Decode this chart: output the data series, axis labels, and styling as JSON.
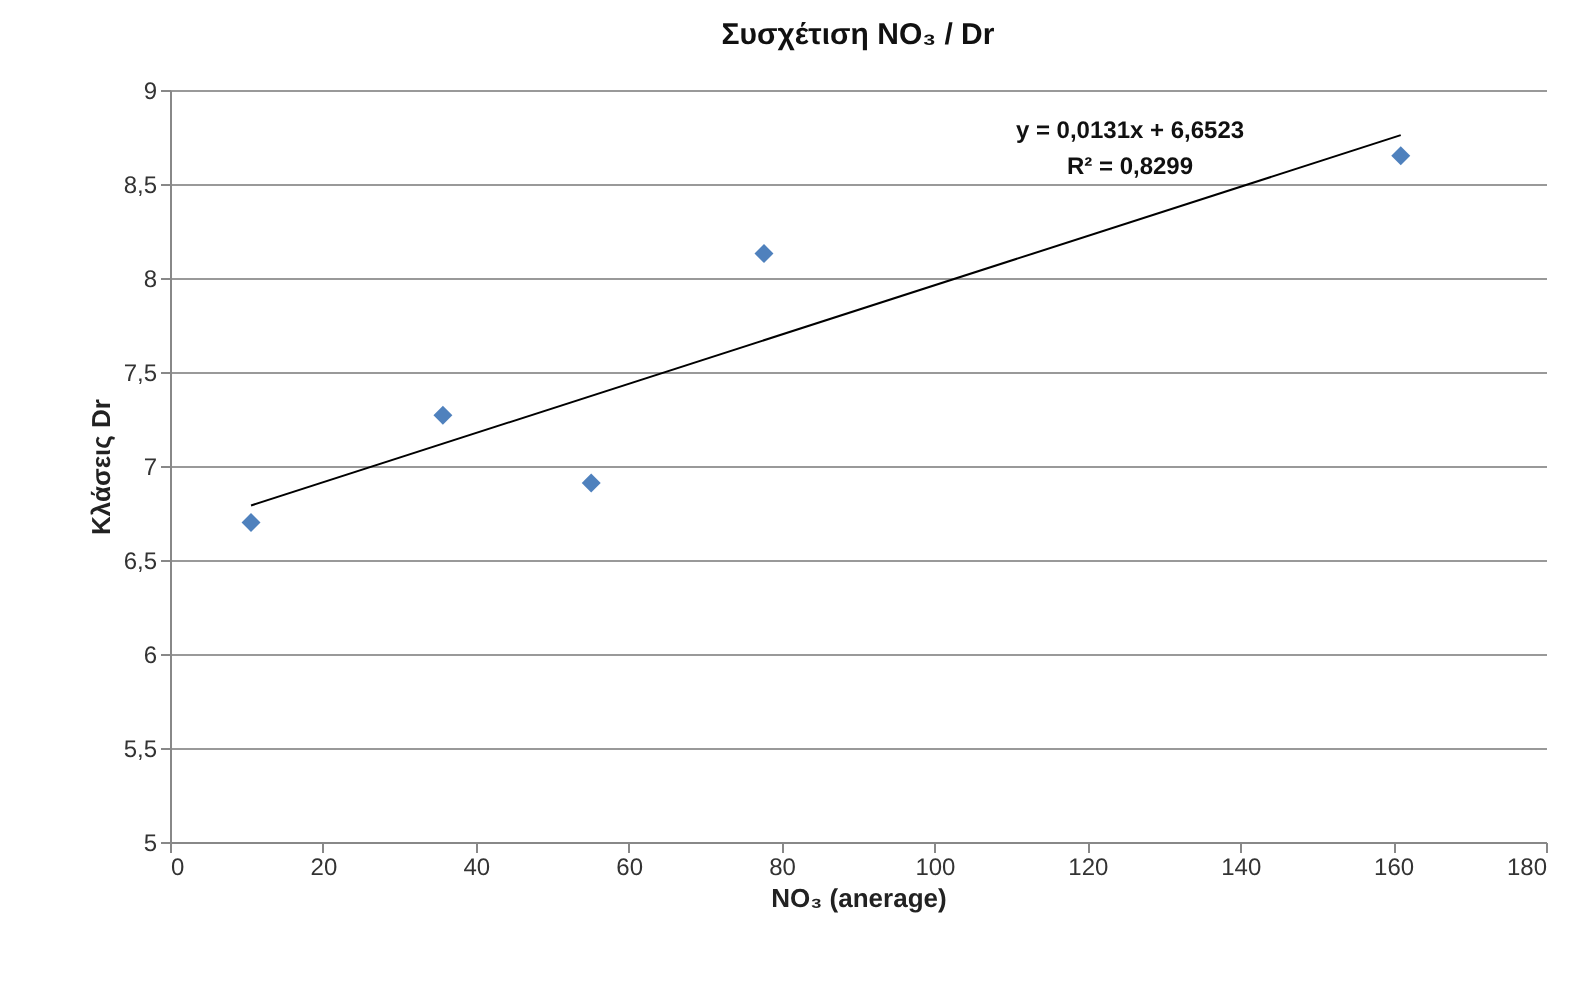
{
  "chart_data": {
    "type": "scatter",
    "title": "Συσχέτιση NO₃ / Dr",
    "xlabel": "NO₃ (anerage)",
    "ylabel": "Κλάσεις Dr",
    "annotations": [
      "y = 0,0131x  + 6,6523",
      "R² = 0,8299"
    ],
    "x": [
      10.6,
      35.7,
      55.1,
      77.7,
      161
    ],
    "series": [
      {
        "color": "#4f81bd",
        "marker": "diamond",
        "values": [
          6.7,
          7.27,
          6.91,
          8.13,
          8.65
        ]
      },
      {
        "type": "line",
        "color": "#000000",
        "x": [
          10.6,
          161
        ],
        "values": [
          6.79,
          8.76
        ]
      }
    ],
    "xlim": [
      0,
      180
    ],
    "xticks": [
      0,
      20,
      40,
      60,
      80,
      100,
      120,
      140,
      160,
      180
    ],
    "ylim": [
      5,
      9
    ],
    "yticks": [
      5,
      {
        "value": 5.5,
        "label": "5,5"
      },
      6,
      {
        "value": 6.5,
        "label": "6,5"
      },
      7,
      {
        "value": 7.5,
        "label": "7,5"
      },
      8,
      {
        "value": 8.5,
        "label": "8,5"
      },
      9
    ],
    "grid": "y",
    "line_style": "solid"
  }
}
